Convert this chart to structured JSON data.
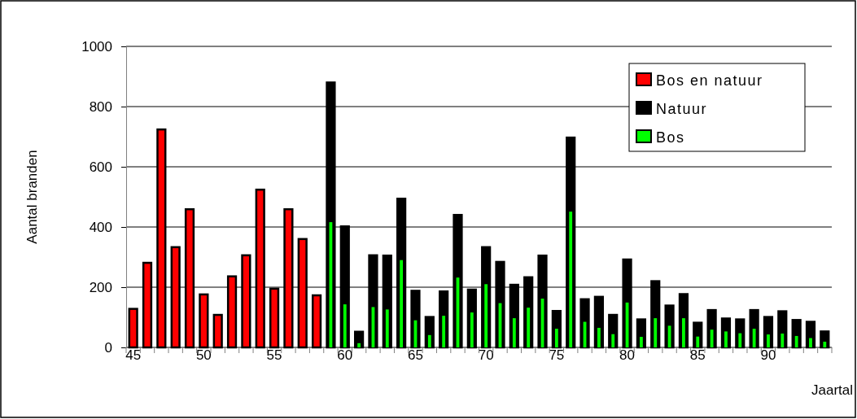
{
  "chart_data": {
    "type": "bar",
    "ylabel": "Aantal branden",
    "xlabel": "Jaartal",
    "categories": [
      "45",
      null,
      null,
      null,
      null,
      "50",
      null,
      null,
      null,
      null,
      "55",
      null,
      null,
      null,
      null,
      "60",
      null,
      null,
      null,
      null,
      "65",
      null,
      null,
      null,
      null,
      "70",
      null,
      null,
      null,
      null,
      "75",
      null,
      null,
      null,
      null,
      "80",
      null,
      null,
      null,
      null,
      "85",
      null,
      null,
      null,
      null,
      "90",
      null,
      null,
      null,
      null
    ],
    "series": [
      {
        "name": "Bos en natuur",
        "color": "#ff0000",
        "values": [
          128,
          281,
          724,
          333,
          459,
          176,
          108,
          236,
          306,
          524,
          195,
          459,
          360,
          173,
          null,
          null,
          null,
          null,
          null,
          null,
          null,
          null,
          null,
          null,
          null,
          null,
          null,
          null,
          null,
          null,
          null,
          null,
          null,
          null,
          null,
          null,
          null,
          null,
          null,
          null,
          null,
          null,
          null,
          null,
          null,
          null,
          null,
          null,
          null,
          null
        ]
      },
      {
        "name": "Natuur",
        "color": "#000000",
        "values": [
          null,
          null,
          null,
          null,
          null,
          null,
          null,
          null,
          null,
          null,
          null,
          null,
          null,
          null,
          880,
          402,
          52,
          306,
          305,
          494,
          188,
          101,
          186,
          440,
          192,
          333,
          284,
          208,
          233,
          305,
          121,
          697,
          160,
          168,
          108,
          292,
          93,
          220,
          139,
          177,
          82,
          124,
          96,
          93,
          124,
          101,
          120,
          91,
          85,
          53
        ]
      },
      {
        "name": "Bos",
        "color": "#00ff00",
        "values": [
          null,
          null,
          null,
          null,
          null,
          null,
          null,
          null,
          null,
          null,
          null,
          null,
          null,
          null,
          416,
          143,
          14,
          134,
          126,
          290,
          90,
          41,
          105,
          232,
          116,
          210,
          147,
          97,
          132,
          162,
          62,
          451,
          85,
          65,
          44,
          149,
          35,
          97,
          72,
          97,
          36,
          59,
          53,
          47,
          62,
          43,
          46,
          38,
          31,
          19
        ]
      }
    ],
    "ylim": [
      0,
      1000
    ],
    "yticks": [
      0,
      200,
      400,
      600,
      800,
      1000
    ],
    "grid": "y",
    "legend": "top right"
  }
}
